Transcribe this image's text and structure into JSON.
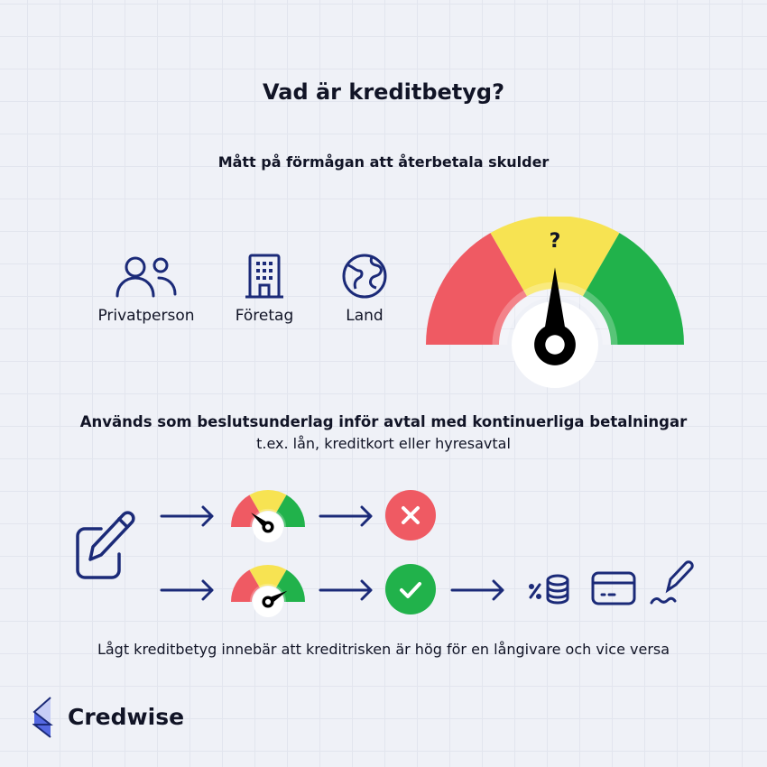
{
  "title": "Vad är kreditbetyg?",
  "subtitle": "Mått på förmågan att återbetala skulder",
  "entities": [
    {
      "label": "Privatperson",
      "icon": "people-icon"
    },
    {
      "label": "Företag",
      "icon": "building-icon"
    },
    {
      "label": "Land",
      "icon": "globe-icon"
    }
  ],
  "gauge": {
    "mark": "?",
    "colors": {
      "red": "#ef5a63",
      "yellow": "#f7e352",
      "green": "#21b24b"
    }
  },
  "usage": {
    "heading": "Används som beslutsunderlag inför avtal med kontinuerliga betalningar",
    "examples": "t.ex. lån, kreditkort eller hyresavtal"
  },
  "flow": {
    "start_icon": "edit-document-icon",
    "rows": [
      {
        "gauge_level": "low",
        "result": "rejected",
        "result_icon": "x-icon",
        "result_color": "#ef5a63"
      },
      {
        "gauge_level": "high",
        "result": "approved",
        "result_icon": "check-icon",
        "result_color": "#21b24b",
        "outcomes": [
          "percent-coins-icon",
          "credit-card-icon",
          "signature-icon"
        ]
      }
    ]
  },
  "conclusion": "Lågt kreditbetyg innebär att kreditrisken är hög för en långivare och vice versa",
  "brand": {
    "name": "Credwise",
    "accent": "#1b2a78"
  }
}
